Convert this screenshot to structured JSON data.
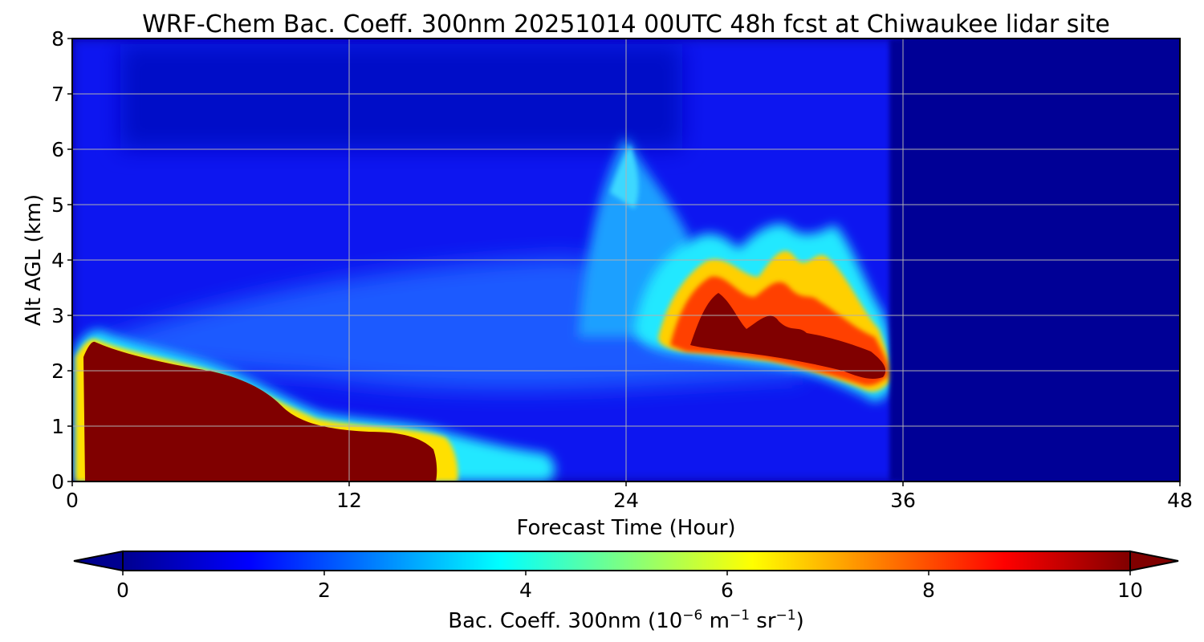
{
  "chart_data": {
    "type": "heatmap",
    "title": "WRF-Chem Bac. Coeff. 300nm  20251014 00UTC 48h fcst at Chiwaukee lidar site",
    "xlabel": "Forecast Time (Hour)",
    "ylabel": "Alt AGL (km)",
    "xlim": [
      0,
      48
    ],
    "ylim": [
      0,
      8
    ],
    "xticks": [
      0,
      12,
      24,
      36,
      48
    ],
    "yticks": [
      0,
      1,
      2,
      3,
      4,
      5,
      6,
      7,
      8
    ],
    "grid": true,
    "data_available_until_hour": 36,
    "colorbar": {
      "label_prefix": "Bac. Coeff. 300nm  (10",
      "label_exp1": "−6",
      "label_mid": " m",
      "label_exp2": "−1",
      "label_mid2": " sr",
      "label_exp3": "−1",
      "label_suffix": ")",
      "min": 0,
      "max": 10,
      "ticks": [
        0,
        2,
        4,
        6,
        8,
        10
      ],
      "colormap": "jet",
      "extend": "both"
    },
    "features": [
      {
        "name": "boundary-layer plume",
        "t_start": 0.2,
        "t_end": 16.5,
        "alt_range_km": [
          0,
          2.6
        ],
        "max_value": 10
      },
      {
        "name": "elevated layer",
        "t_start": 25.5,
        "t_end": 35.8,
        "alt_range_km": [
          1.6,
          4.0
        ],
        "max_value": 10
      },
      {
        "name": "weak upper plume",
        "t_start": 22,
        "t_end": 26,
        "alt_range_km": [
          4.0,
          6.3
        ],
        "max_value": 3.8
      }
    ]
  }
}
